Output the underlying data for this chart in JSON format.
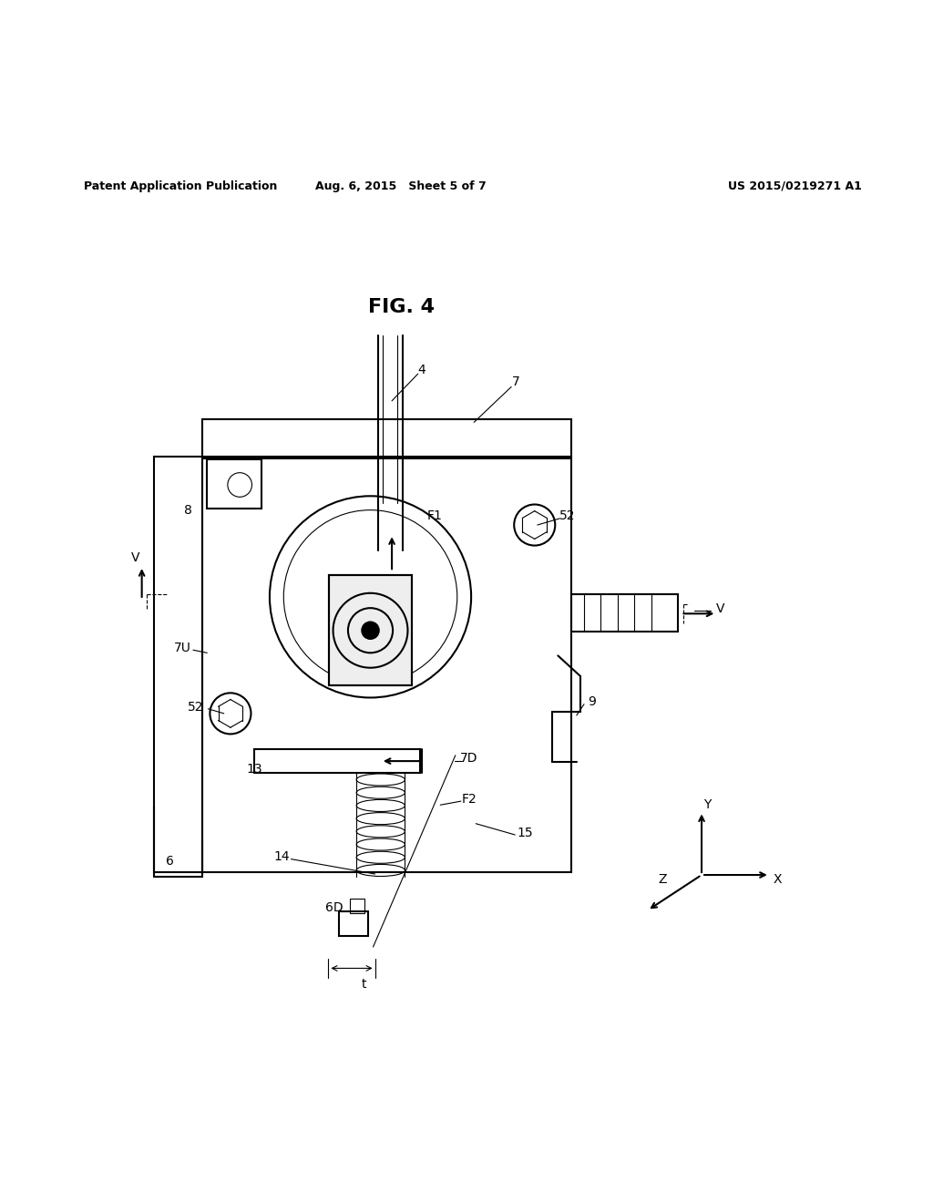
{
  "background_color": "#ffffff",
  "header_left": "Patent Application Publication",
  "header_mid": "Aug. 6, 2015   Sheet 5 of 7",
  "header_right": "US 2015/0219271 A1",
  "fig_label": "FIG. 4",
  "line_color": "#000000",
  "line_width": 1.5,
  "thin_line": 0.8
}
